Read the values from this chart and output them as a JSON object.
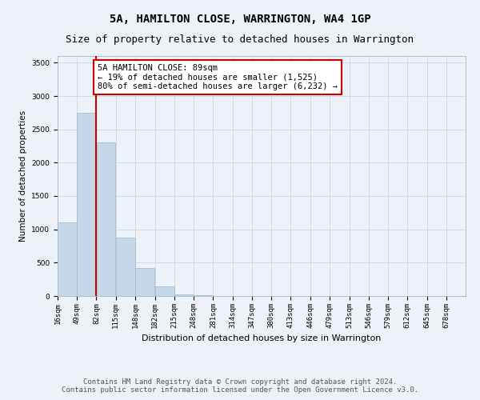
{
  "title": "5A, HAMILTON CLOSE, WARRINGTON, WA4 1GP",
  "subtitle": "Size of property relative to detached houses in Warrington",
  "xlabel": "Distribution of detached houses by size in Warrington",
  "ylabel": "Number of detached properties",
  "bin_labels": [
    "16sqm",
    "49sqm",
    "82sqm",
    "115sqm",
    "148sqm",
    "182sqm",
    "215sqm",
    "248sqm",
    "281sqm",
    "314sqm",
    "347sqm",
    "380sqm",
    "413sqm",
    "446sqm",
    "479sqm",
    "513sqm",
    "546sqm",
    "579sqm",
    "612sqm",
    "645sqm",
    "678sqm"
  ],
  "bin_edges": [
    16,
    49,
    82,
    115,
    148,
    182,
    215,
    248,
    281,
    314,
    347,
    380,
    413,
    446,
    479,
    513,
    546,
    579,
    612,
    645,
    678
  ],
  "bar_values": [
    1100,
    2750,
    2300,
    875,
    425,
    150,
    30,
    10,
    5,
    3,
    2,
    1,
    1,
    0,
    0,
    0,
    0,
    0,
    0,
    0
  ],
  "bar_color": "#c5d8ea",
  "bar_edge_color": "#9ab8cc",
  "grid_color": "#d0dae8",
  "background_color": "#edf2f8",
  "property_line_x": 82,
  "property_line_color": "#cc0000",
  "annotation_text": "5A HAMILTON CLOSE: 89sqm\n← 19% of detached houses are smaller (1,525)\n80% of semi-detached houses are larger (6,232) →",
  "annotation_box_color": "#cc0000",
  "annotation_bg": "white",
  "ylim": [
    0,
    3600
  ],
  "yticks": [
    0,
    500,
    1000,
    1500,
    2000,
    2500,
    3000,
    3500
  ],
  "footer_text": "Contains HM Land Registry data © Crown copyright and database right 2024.\nContains public sector information licensed under the Open Government Licence v3.0.",
  "title_fontsize": 10,
  "subtitle_fontsize": 9,
  "annotation_fontsize": 7.5,
  "ylabel_fontsize": 7.5,
  "xlabel_fontsize": 8,
  "footer_fontsize": 6.5,
  "tick_fontsize": 6.5
}
